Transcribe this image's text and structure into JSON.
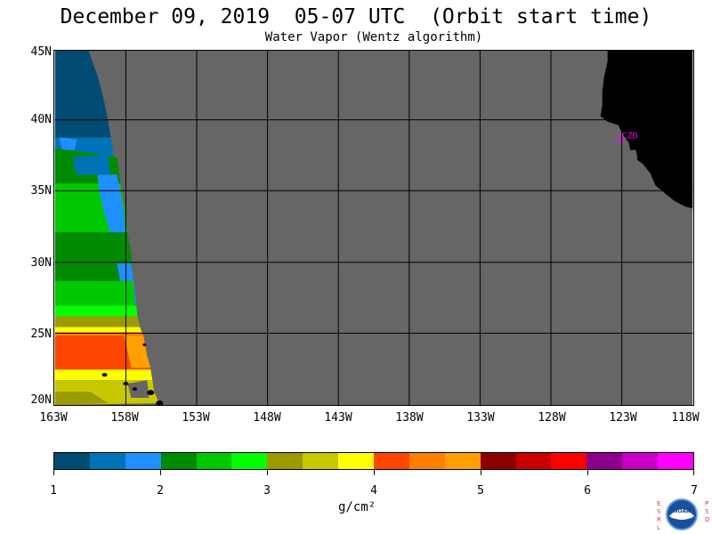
{
  "header": {
    "title": "December 09, 2019  05-07 UTC  (Orbit start time)",
    "subtitle": "Water Vapor (Wentz algorithm)"
  },
  "map": {
    "lat_labels": [
      "45N",
      "40N",
      "35N",
      "30N",
      "25N",
      "20N"
    ],
    "lon_labels": [
      "163W",
      "158W",
      "153W",
      "148W",
      "143W",
      "138W",
      "133W",
      "128W",
      "123W",
      "118W"
    ],
    "station_label": "CZD",
    "colors": {
      "no_data": "#666666",
      "land": "#000000",
      "grid": "#000000",
      "station": "#ff00ff"
    }
  },
  "legend": {
    "tick_labels": [
      "1",
      "2",
      "3",
      "4",
      "5",
      "6",
      "7"
    ],
    "unit": "g/cm²",
    "colors": [
      "#004c73",
      "#0073b8",
      "#1e90ff",
      "#008b00",
      "#00c800",
      "#00ff00",
      "#9b9b00",
      "#c8c800",
      "#ffff00",
      "#ff4500",
      "#ff7f00",
      "#ffa000",
      "#8b0000",
      "#c80000",
      "#ff0000",
      "#8b008b",
      "#c800c8",
      "#ff00ff"
    ]
  },
  "logo": {
    "left_letters": [
      "E",
      "S",
      "R",
      "L"
    ],
    "right_letters": [
      "P",
      "S",
      "D"
    ],
    "name": "NOAA"
  }
}
